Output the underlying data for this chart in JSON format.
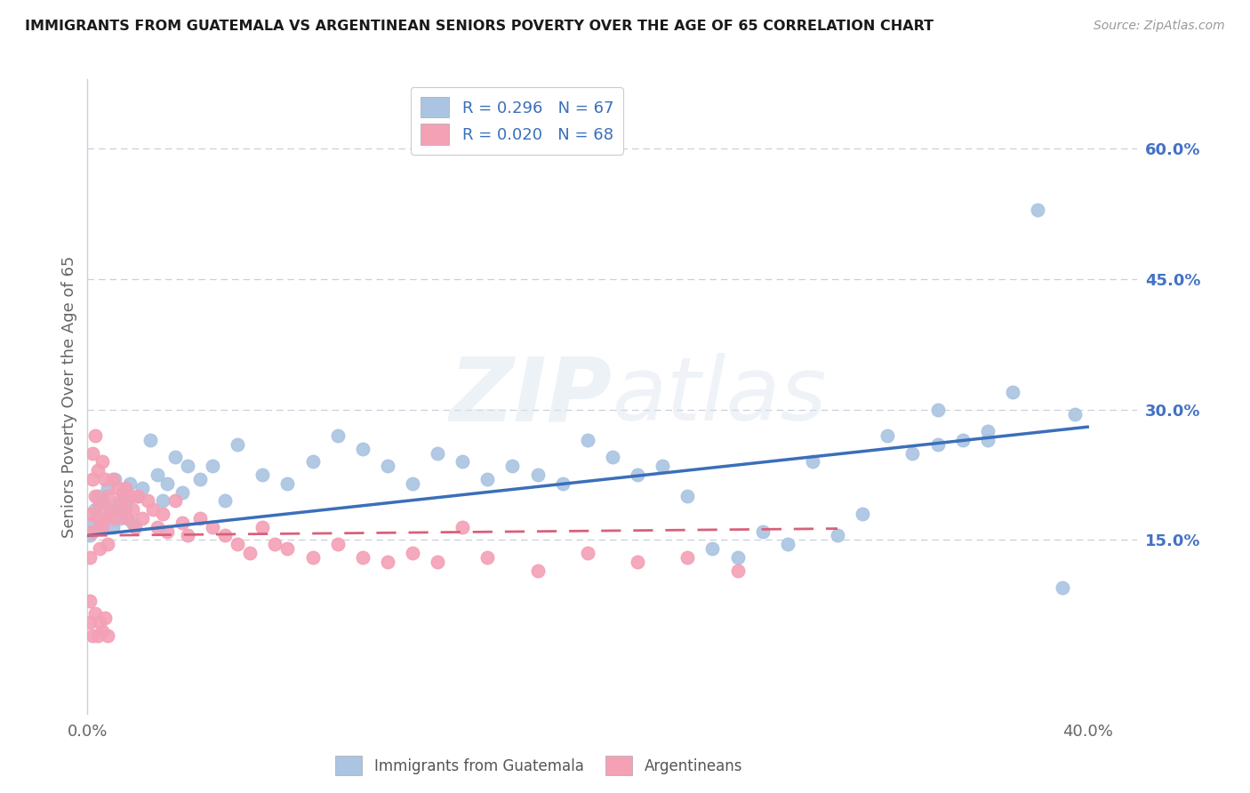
{
  "title": "IMMIGRANTS FROM GUATEMALA VS ARGENTINEAN SENIORS POVERTY OVER THE AGE OF 65 CORRELATION CHART",
  "source": "Source: ZipAtlas.com",
  "ylabel": "Seniors Poverty Over the Age of 65",
  "xlim": [
    0.0,
    0.42
  ],
  "ylim": [
    -0.05,
    0.68
  ],
  "xticks": [
    0.0,
    0.4
  ],
  "xticklabels": [
    "0.0%",
    "40.0%"
  ],
  "yticks_right": [
    0.15,
    0.3,
    0.45,
    0.6
  ],
  "ytick_labels_right": [
    "15.0%",
    "30.0%",
    "45.0%",
    "60.0%"
  ],
  "blue_R": 0.296,
  "blue_N": 67,
  "pink_R": 0.02,
  "pink_N": 68,
  "legend_label1": "Immigrants from Guatemala",
  "legend_label2": "Argentineans",
  "blue_color": "#aac4e2",
  "blue_line_color": "#3a6fba",
  "pink_color": "#f4a0b5",
  "pink_line_color": "#d9607a",
  "blue_scatter_x": [
    0.001,
    0.002,
    0.003,
    0.004,
    0.005,
    0.006,
    0.007,
    0.008,
    0.009,
    0.01,
    0.011,
    0.012,
    0.013,
    0.014,
    0.015,
    0.016,
    0.017,
    0.018,
    0.02,
    0.022,
    0.025,
    0.028,
    0.03,
    0.032,
    0.035,
    0.038,
    0.04,
    0.045,
    0.05,
    0.055,
    0.06,
    0.07,
    0.08,
    0.09,
    0.1,
    0.11,
    0.12,
    0.13,
    0.14,
    0.15,
    0.16,
    0.17,
    0.18,
    0.19,
    0.2,
    0.21,
    0.22,
    0.23,
    0.24,
    0.25,
    0.26,
    0.27,
    0.28,
    0.29,
    0.3,
    0.31,
    0.32,
    0.33,
    0.34,
    0.35,
    0.36,
    0.37,
    0.38,
    0.39,
    0.395,
    0.34,
    0.36
  ],
  "blue_scatter_y": [
    0.155,
    0.17,
    0.185,
    0.2,
    0.165,
    0.195,
    0.175,
    0.21,
    0.185,
    0.165,
    0.22,
    0.19,
    0.175,
    0.205,
    0.185,
    0.195,
    0.215,
    0.17,
    0.2,
    0.21,
    0.265,
    0.225,
    0.195,
    0.215,
    0.245,
    0.205,
    0.235,
    0.22,
    0.235,
    0.195,
    0.26,
    0.225,
    0.215,
    0.24,
    0.27,
    0.255,
    0.235,
    0.215,
    0.25,
    0.24,
    0.22,
    0.235,
    0.225,
    0.215,
    0.265,
    0.245,
    0.225,
    0.235,
    0.2,
    0.14,
    0.13,
    0.16,
    0.145,
    0.24,
    0.155,
    0.18,
    0.27,
    0.25,
    0.26,
    0.265,
    0.275,
    0.32,
    0.53,
    0.095,
    0.295,
    0.3,
    0.265
  ],
  "pink_scatter_x": [
    0.001,
    0.001,
    0.001,
    0.002,
    0.002,
    0.002,
    0.003,
    0.003,
    0.004,
    0.004,
    0.005,
    0.005,
    0.006,
    0.006,
    0.007,
    0.007,
    0.008,
    0.008,
    0.009,
    0.01,
    0.011,
    0.012,
    0.013,
    0.014,
    0.015,
    0.016,
    0.017,
    0.018,
    0.019,
    0.02,
    0.022,
    0.024,
    0.026,
    0.028,
    0.03,
    0.032,
    0.035,
    0.038,
    0.04,
    0.045,
    0.05,
    0.055,
    0.06,
    0.065,
    0.07,
    0.075,
    0.08,
    0.09,
    0.1,
    0.11,
    0.12,
    0.13,
    0.14,
    0.15,
    0.16,
    0.18,
    0.2,
    0.22,
    0.24,
    0.26,
    0.001,
    0.002,
    0.003,
    0.004,
    0.005,
    0.006,
    0.007,
    0.008
  ],
  "pink_scatter_y": [
    0.08,
    0.13,
    0.18,
    0.22,
    0.16,
    0.25,
    0.2,
    0.27,
    0.175,
    0.23,
    0.14,
    0.19,
    0.24,
    0.165,
    0.22,
    0.175,
    0.2,
    0.145,
    0.185,
    0.22,
    0.175,
    0.21,
    0.195,
    0.185,
    0.21,
    0.175,
    0.2,
    0.185,
    0.165,
    0.2,
    0.175,
    0.195,
    0.185,
    0.165,
    0.18,
    0.16,
    0.195,
    0.17,
    0.155,
    0.175,
    0.165,
    0.155,
    0.145,
    0.135,
    0.165,
    0.145,
    0.14,
    0.13,
    0.145,
    0.13,
    0.125,
    0.135,
    0.125,
    0.165,
    0.13,
    0.115,
    0.135,
    0.125,
    0.13,
    0.115,
    0.055,
    0.04,
    0.065,
    0.04,
    0.055,
    0.045,
    0.06,
    0.04
  ],
  "blue_trend_x": [
    0.0,
    0.4
  ],
  "blue_trend_y": [
    0.155,
    0.28
  ],
  "pink_trend_x": [
    0.0,
    0.3
  ],
  "pink_trend_y": [
    0.155,
    0.163
  ],
  "watermark_zip": "ZIP",
  "watermark_atlas": "atlas",
  "bg_color": "#ffffff",
  "grid_color": "#c8d0dc",
  "title_color": "#1a1a1a",
  "axis_label_color": "#666666",
  "right_tick_color": "#4472c4",
  "legend_text_color": "#3a6fba"
}
